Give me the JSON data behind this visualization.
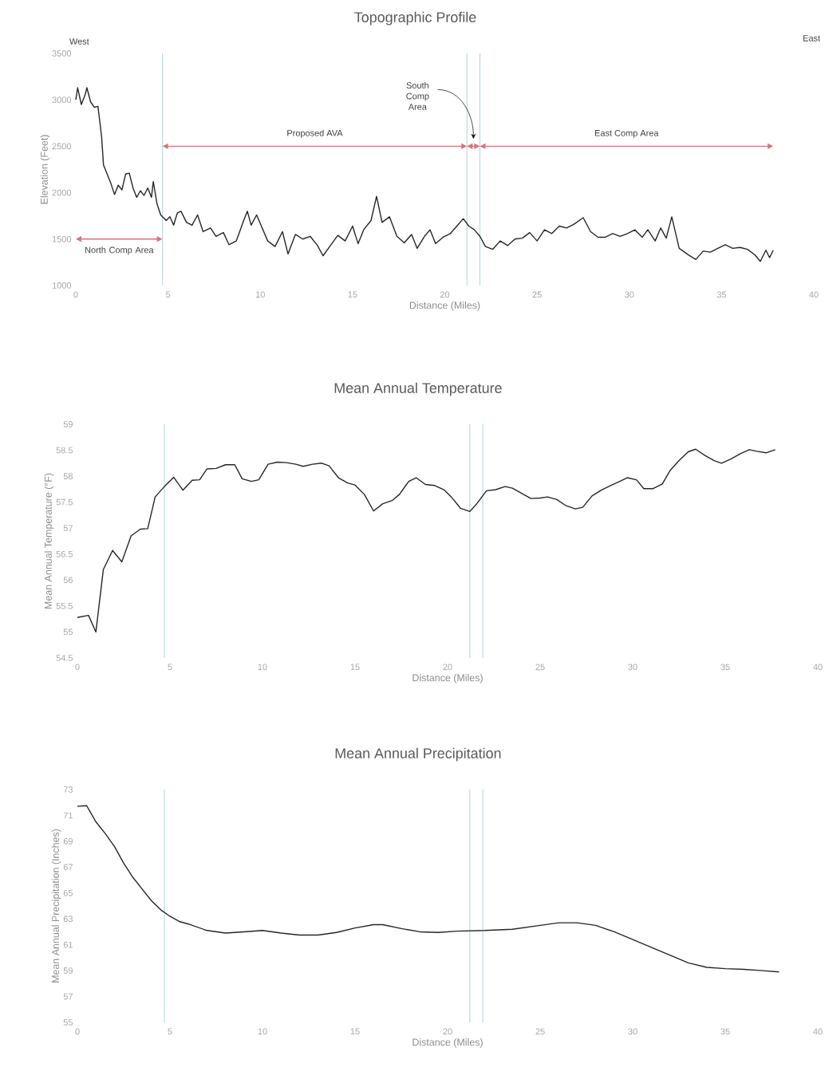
{
  "chart_data": [
    {
      "type": "line",
      "title": "Topographic Profile",
      "xlabel": "Distance (Miles)",
      "ylabel": "Elevation (Feet)",
      "color": "#262626",
      "x": [
        0,
        0.1,
        0.3,
        0.5,
        0.6,
        0.8,
        1.0,
        1.2,
        1.4,
        1.5,
        1.7,
        1.9,
        2.1,
        2.3,
        2.5,
        2.7,
        2.9,
        3.1,
        3.3,
        3.5,
        3.7,
        3.9,
        4.1,
        4.2,
        4.4,
        4.6,
        4.9,
        5.1,
        5.3,
        5.5,
        5.7,
        6.0,
        6.3,
        6.6,
        6.9,
        7.3,
        7.6,
        8.0,
        8.3,
        8.7,
        9.1,
        9.3,
        9.5,
        9.8,
        10.1,
        10.4,
        10.8,
        11.2,
        11.5,
        11.9,
        12.3,
        12.7,
        13.1,
        13.4,
        13.8,
        14.2,
        14.6,
        15.0,
        15.3,
        15.6,
        16.0,
        16.3,
        16.6,
        17.0,
        17.4,
        17.8,
        18.2,
        18.5,
        18.9,
        19.2,
        19.5,
        19.9,
        20.3,
        20.7,
        21.0,
        21.3,
        21.6,
        21.9,
        22.2,
        22.6,
        23.0,
        23.4,
        23.8,
        24.2,
        24.6,
        25.0,
        25.4,
        25.8,
        26.2,
        26.6,
        27.0,
        27.5,
        27.9,
        28.3,
        28.7,
        29.1,
        29.5,
        29.9,
        30.3,
        30.7,
        31.0,
        31.4,
        31.7,
        32.0,
        32.3,
        32.7,
        33.2,
        33.6,
        34.0,
        34.4,
        34.8,
        35.2,
        35.6,
        36.0,
        36.4,
        36.8,
        37.1,
        37.4,
        37.6,
        37.8
      ],
      "values": [
        3000,
        3130,
        2950,
        3050,
        3130,
        2980,
        2920,
        2930,
        2600,
        2300,
        2200,
        2100,
        1980,
        2080,
        2030,
        2200,
        2210,
        2050,
        1950,
        2020,
        1970,
        2050,
        1950,
        2120,
        1880,
        1760,
        1700,
        1740,
        1650,
        1780,
        1800,
        1680,
        1650,
        1760,
        1580,
        1620,
        1530,
        1570,
        1440,
        1480,
        1700,
        1800,
        1650,
        1760,
        1620,
        1480,
        1420,
        1580,
        1340,
        1550,
        1500,
        1530,
        1430,
        1320,
        1430,
        1540,
        1480,
        1640,
        1450,
        1600,
        1700,
        1960,
        1680,
        1740,
        1530,
        1460,
        1550,
        1400,
        1530,
        1600,
        1450,
        1520,
        1560,
        1650,
        1720,
        1640,
        1600,
        1530,
        1420,
        1390,
        1480,
        1430,
        1500,
        1510,
        1570,
        1480,
        1600,
        1560,
        1640,
        1620,
        1660,
        1730,
        1580,
        1520,
        1520,
        1560,
        1530,
        1560,
        1600,
        1520,
        1600,
        1480,
        1620,
        1510,
        1740,
        1400,
        1330,
        1280,
        1370,
        1360,
        1400,
        1440,
        1400,
        1410,
        1390,
        1330,
        1260,
        1380,
        1300,
        1380
      ],
      "xlim": [
        0,
        40
      ],
      "ylim": [
        1000,
        3500
      ],
      "xticks": [
        0,
        5,
        10,
        15,
        20,
        25,
        30,
        35,
        40
      ],
      "yticks": [
        1000,
        1500,
        2000,
        2500,
        3000,
        3500
      ],
      "ref_lines": [
        {
          "axis": "x",
          "value": 4.7,
          "color": "#a8cfd6"
        },
        {
          "axis": "x",
          "value": 21.2,
          "color": "#a8cfd6"
        },
        {
          "axis": "x",
          "value": 21.9,
          "color": "#a8cfd6"
        }
      ],
      "annotations": [
        "West",
        "East",
        "North Comp Area",
        "Proposed AVA",
        "South Comp Area",
        "East Comp Area"
      ]
    },
    {
      "type": "line",
      "title": "Mean Annual Temperature",
      "xlabel": "Distance (Miles)",
      "ylabel": "Mean Annual Temperature (°F)",
      "color": "#262626",
      "x": [
        0,
        0.6,
        1.0,
        1.4,
        1.9,
        2.4,
        2.9,
        3.4,
        3.8,
        4.2,
        4.7,
        5.2,
        5.7,
        6.2,
        6.6,
        7.0,
        7.5,
        8.0,
        8.5,
        8.9,
        9.4,
        9.8,
        10.3,
        10.8,
        11.3,
        11.8,
        12.2,
        12.7,
        13.2,
        13.6,
        14.1,
        14.6,
        15.0,
        15.5,
        16.0,
        16.5,
        17.0,
        17.4,
        17.9,
        18.3,
        18.8,
        19.3,
        19.8,
        20.2,
        20.7,
        21.2,
        21.6,
        22.1,
        22.6,
        23.1,
        23.5,
        24.0,
        24.5,
        25.0,
        25.4,
        25.9,
        26.4,
        26.9,
        27.3,
        27.8,
        28.3,
        28.8,
        29.3,
        29.7,
        30.2,
        30.6,
        31.1,
        31.6,
        32.0,
        32.5,
        33.0,
        33.4,
        33.9,
        34.4,
        34.8,
        35.3,
        35.8,
        36.3,
        36.7,
        37.2,
        37.7
      ],
      "values": [
        55.28,
        55.32,
        55.0,
        56.2,
        56.57,
        56.35,
        56.85,
        56.98,
        56.99,
        57.6,
        57.8,
        57.98,
        57.73,
        57.92,
        57.93,
        58.14,
        58.15,
        58.22,
        58.22,
        57.95,
        57.9,
        57.93,
        58.23,
        58.27,
        58.26,
        58.23,
        58.19,
        58.23,
        58.25,
        58.2,
        57.97,
        57.87,
        57.83,
        57.65,
        57.33,
        57.47,
        57.53,
        57.65,
        57.9,
        57.97,
        57.84,
        57.82,
        57.74,
        57.6,
        57.38,
        57.32,
        57.48,
        57.72,
        57.74,
        57.8,
        57.77,
        57.67,
        57.57,
        57.58,
        57.6,
        57.55,
        57.43,
        57.37,
        57.4,
        57.62,
        57.73,
        57.82,
        57.9,
        57.97,
        57.93,
        57.76,
        57.76,
        57.85,
        58.1,
        58.3,
        58.47,
        58.52,
        58.4,
        58.3,
        58.25,
        58.33,
        58.43,
        58.51,
        58.48,
        58.45,
        58.51
      ],
      "xlim": [
        0,
        40
      ],
      "ylim": [
        54.5,
        59
      ],
      "xticks": [
        0,
        5,
        10,
        15,
        20,
        25,
        30,
        35,
        40
      ],
      "yticks": [
        54.5,
        55,
        55.5,
        56,
        56.5,
        57,
        57.5,
        58,
        58.5,
        59
      ],
      "ref_lines": [
        {
          "axis": "x",
          "value": 4.7,
          "color": "#a8cfd6"
        },
        {
          "axis": "x",
          "value": 21.2,
          "color": "#a8cfd6"
        },
        {
          "axis": "x",
          "value": 21.9,
          "color": "#a8cfd6"
        }
      ]
    },
    {
      "type": "line",
      "title": "Mean Annual Precipitation",
      "xlabel": "Distance (Miles)",
      "ylabel": "Mean Annual Precipitation (Inches)",
      "color": "#262626",
      "x": [
        0,
        0.5,
        1,
        1.5,
        2,
        2.5,
        3,
        3.5,
        4,
        4.5,
        5,
        5.5,
        6,
        7,
        8,
        9,
        10,
        11,
        12,
        13,
        14,
        15,
        16,
        16.5,
        17.5,
        18.5,
        19.5,
        20.5,
        22,
        23.5,
        25,
        26,
        27,
        28,
        29,
        30,
        31,
        32,
        33,
        34,
        35,
        36,
        37,
        37.9
      ],
      "values": [
        71.7,
        71.75,
        70.5,
        69.6,
        68.6,
        67.3,
        66.2,
        65.3,
        64.4,
        63.7,
        63.2,
        62.8,
        62.6,
        62.1,
        61.9,
        62.0,
        62.1,
        61.9,
        61.75,
        61.75,
        61.95,
        62.3,
        62.55,
        62.55,
        62.25,
        62.0,
        61.95,
        62.05,
        62.1,
        62.2,
        62.5,
        62.7,
        62.7,
        62.5,
        62.0,
        61.4,
        60.8,
        60.2,
        59.6,
        59.25,
        59.15,
        59.1,
        59.0,
        58.9
      ],
      "xlim": [
        0,
        40
      ],
      "ylim": [
        55,
        73
      ],
      "xticks": [
        0,
        5,
        10,
        15,
        20,
        25,
        30,
        35,
        40
      ],
      "yticks": [
        55,
        57,
        59,
        61,
        63,
        65,
        67,
        69,
        71,
        73
      ],
      "ref_lines": [
        {
          "axis": "x",
          "value": 4.7,
          "color": "#a8cfd6"
        },
        {
          "axis": "x",
          "value": 21.2,
          "color": "#a8cfd6"
        },
        {
          "axis": "x",
          "value": 21.9,
          "color": "#a8cfd6"
        }
      ]
    }
  ]
}
